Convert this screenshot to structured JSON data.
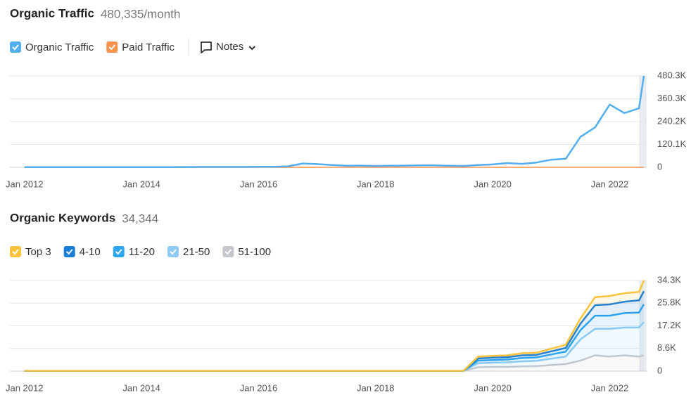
{
  "chart_data": [
    {
      "type": "line",
      "title": "Organic Traffic",
      "subtitle": "480,335/month",
      "notes_button": "Notes",
      "x": [
        "2012-01",
        "2012-04",
        "2012-07",
        "2012-10",
        "2013-01",
        "2013-04",
        "2013-07",
        "2013-10",
        "2014-01",
        "2014-04",
        "2014-07",
        "2014-10",
        "2015-01",
        "2015-04",
        "2015-07",
        "2015-10",
        "2016-01",
        "2016-04",
        "2016-07",
        "2016-10",
        "2017-01",
        "2017-04",
        "2017-07",
        "2017-10",
        "2018-01",
        "2018-04",
        "2018-07",
        "2018-10",
        "2019-01",
        "2019-04",
        "2019-07",
        "2019-10",
        "2020-01",
        "2020-04",
        "2020-07",
        "2020-10",
        "2021-01",
        "2021-04",
        "2021-07",
        "2021-10",
        "2022-01",
        "2022-04",
        "2022-07",
        "2022-08"
      ],
      "series": [
        {
          "name": "Organic Traffic",
          "color": "#52aeed",
          "values": [
            1000,
            1000,
            1000,
            1000,
            1000,
            1000,
            1000,
            1000,
            1000,
            1000,
            1000,
            1500,
            2000,
            2000,
            2000,
            2000,
            2500,
            3000,
            5000,
            20000,
            17000,
            12000,
            8000,
            9000,
            7000,
            8000,
            9000,
            10000,
            10000,
            8000,
            7000,
            12000,
            15000,
            22000,
            18000,
            25000,
            40000,
            45000,
            160000,
            210000,
            330000,
            285000,
            310000,
            480335
          ]
        },
        {
          "name": "Paid Traffic",
          "color": "#f8924d",
          "values": [
            0,
            0,
            0,
            0,
            0,
            0,
            0,
            0,
            0,
            0,
            0,
            0,
            0,
            0,
            0,
            0,
            0,
            0,
            0,
            0,
            0,
            0,
            0,
            0,
            0,
            0,
            0,
            0,
            0,
            0,
            0,
            0,
            0,
            0,
            0,
            0,
            0,
            0,
            0,
            0,
            0,
            0,
            0,
            0
          ]
        }
      ],
      "xlim": [
        "2011-10",
        "2022-08"
      ],
      "xticks": [
        {
          "value": "2012-01",
          "label": "Jan 2012"
        },
        {
          "value": "2014-01",
          "label": "Jan 2014"
        },
        {
          "value": "2016-01",
          "label": "Jan 2016"
        },
        {
          "value": "2018-01",
          "label": "Jan 2018"
        },
        {
          "value": "2020-01",
          "label": "Jan 2020"
        },
        {
          "value": "2022-01",
          "label": "Jan 2022"
        }
      ],
      "ylim": [
        0,
        480335
      ],
      "yticks": [
        0,
        {
          "value": 120084,
          "label": "120.1K"
        },
        {
          "value": 240168,
          "label": "240.2K"
        },
        {
          "value": 360251,
          "label": "360.3K"
        },
        {
          "value": 480335,
          "label": "480.3K"
        }
      ],
      "grid": true
    },
    {
      "type": "stacked-area",
      "title": "Organic Keywords",
      "subtitle": "34,344",
      "x": [
        "2012-01",
        "2012-04",
        "2012-07",
        "2012-10",
        "2013-01",
        "2013-04",
        "2013-07",
        "2013-10",
        "2014-01",
        "2014-04",
        "2014-07",
        "2014-10",
        "2015-01",
        "2015-04",
        "2015-07",
        "2015-10",
        "2016-01",
        "2016-04",
        "2016-07",
        "2016-10",
        "2017-01",
        "2017-04",
        "2017-07",
        "2017-10",
        "2018-01",
        "2018-04",
        "2018-07",
        "2018-10",
        "2019-01",
        "2019-04",
        "2019-07",
        "2019-10",
        "2020-01",
        "2020-04",
        "2020-07",
        "2020-10",
        "2021-01",
        "2021-04",
        "2021-07",
        "2021-10",
        "2022-01",
        "2022-04",
        "2022-07",
        "2022-08"
      ],
      "series": [
        {
          "name": "Top 3",
          "color": "#f9c33c",
          "values": [
            5,
            5,
            5,
            5,
            5,
            5,
            5,
            5,
            5,
            5,
            5,
            5,
            5,
            5,
            5,
            5,
            5,
            5,
            5,
            5,
            5,
            5,
            5,
            5,
            5,
            5,
            5,
            5,
            5,
            5,
            5,
            700,
            700,
            700,
            800,
            800,
            1000,
            1200,
            2000,
            3000,
            3200,
            3200,
            3200,
            4044
          ]
        },
        {
          "name": "4-10",
          "color": "#1a7ed6",
          "values": [
            10,
            10,
            10,
            10,
            10,
            10,
            10,
            10,
            10,
            10,
            10,
            10,
            10,
            10,
            10,
            10,
            10,
            10,
            10,
            10,
            10,
            10,
            10,
            10,
            10,
            10,
            10,
            10,
            10,
            10,
            10,
            800,
            900,
            900,
            1000,
            1000,
            1200,
            1400,
            2500,
            4000,
            4300,
            4300,
            4600,
            5000
          ]
        },
        {
          "name": "11-20",
          "color": "#2ea6f0",
          "values": [
            15,
            15,
            15,
            15,
            15,
            15,
            15,
            15,
            15,
            15,
            15,
            15,
            15,
            15,
            15,
            15,
            15,
            15,
            15,
            15,
            15,
            15,
            15,
            15,
            15,
            15,
            15,
            15,
            15,
            15,
            15,
            1000,
            1000,
            1100,
            1300,
            1300,
            1600,
            1900,
            3500,
            5000,
            5000,
            5500,
            5700,
            6800
          ]
        },
        {
          "name": "21-50",
          "color": "#8fccf5",
          "values": [
            30,
            30,
            30,
            30,
            30,
            30,
            30,
            30,
            30,
            30,
            30,
            30,
            30,
            30,
            30,
            30,
            30,
            30,
            30,
            30,
            30,
            30,
            30,
            30,
            30,
            30,
            30,
            30,
            30,
            30,
            30,
            1500,
            1600,
            1700,
            1900,
            2000,
            2400,
            2800,
            8000,
            10000,
            10500,
            10500,
            11000,
            12500
          ]
        },
        {
          "name": "51-100",
          "color": "#c4c7cc",
          "values": [
            40,
            40,
            40,
            40,
            40,
            40,
            40,
            40,
            40,
            40,
            40,
            40,
            40,
            40,
            40,
            40,
            40,
            40,
            40,
            40,
            40,
            40,
            40,
            40,
            40,
            40,
            40,
            40,
            40,
            40,
            40,
            1500,
            1600,
            1600,
            1800,
            1900,
            2300,
            2700,
            4000,
            6000,
            5500,
            6000,
            5500,
            6000
          ]
        }
      ],
      "xlim": [
        "2011-10",
        "2022-08"
      ],
      "xticks": [
        {
          "value": "2012-01",
          "label": "Jan 2012"
        },
        {
          "value": "2014-01",
          "label": "Jan 2014"
        },
        {
          "value": "2016-01",
          "label": "Jan 2016"
        },
        {
          "value": "2018-01",
          "label": "Jan 2018"
        },
        {
          "value": "2020-01",
          "label": "Jan 2020"
        },
        {
          "value": "2022-01",
          "label": "Jan 2022"
        }
      ],
      "ylim": [
        0,
        34344
      ],
      "yticks": [
        0,
        {
          "value": 8586,
          "label": "8.6K"
        },
        {
          "value": 17172,
          "label": "17.2K"
        },
        {
          "value": 25758,
          "label": "25.8K"
        },
        {
          "value": 34344,
          "label": "34.3K"
        }
      ],
      "grid": true
    }
  ]
}
